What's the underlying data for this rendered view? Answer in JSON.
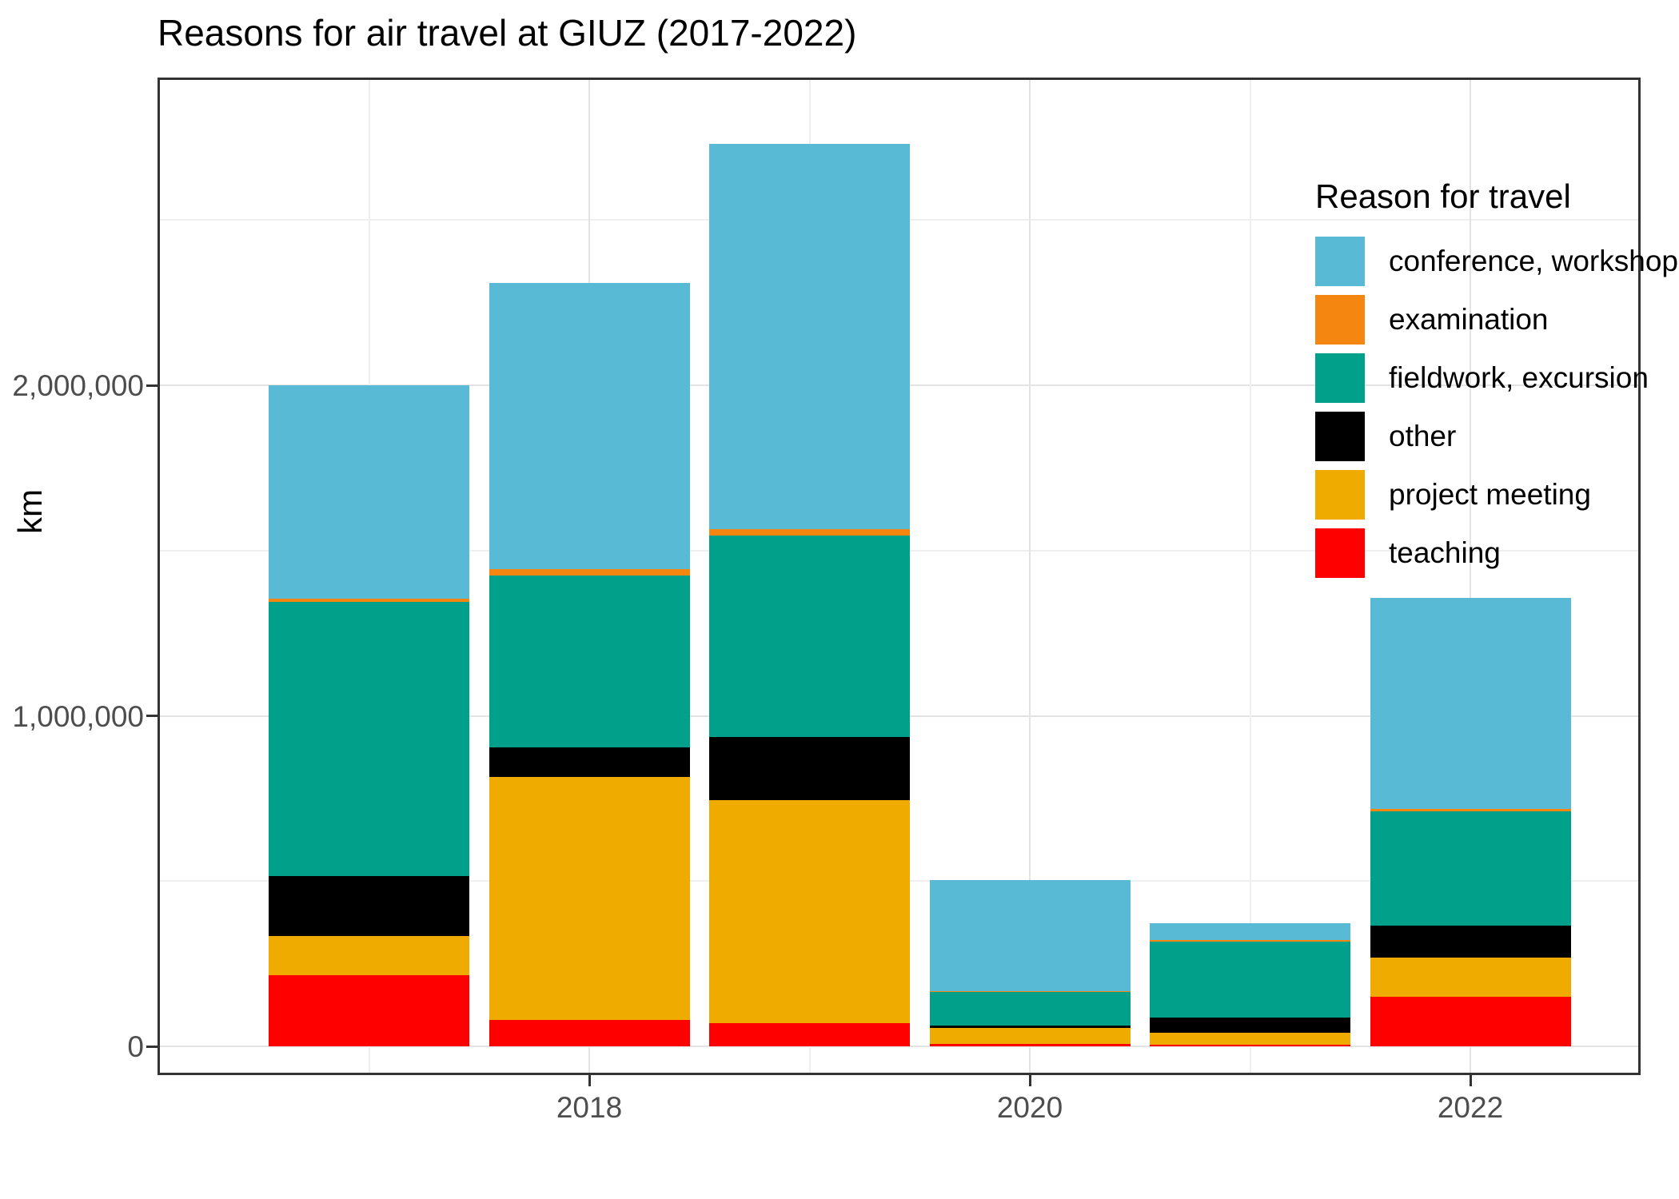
{
  "title": "Reasons for air travel at GIUZ (2017-2022)",
  "y_axis": {
    "label": "km",
    "tick_values": [
      0,
      1000000,
      2000000
    ],
    "tick_labels": [
      "0",
      "1,000,000",
      "2,000,000"
    ],
    "minor_tick_values": [
      500000,
      1500000,
      2500000
    ]
  },
  "x_axis": {
    "tick_labels": [
      "2018",
      "2020",
      "2022"
    ],
    "tick_years": [
      2018,
      2020,
      2022
    ],
    "minor_years": [
      2017,
      2019,
      2021
    ]
  },
  "legend": {
    "title": "Reason for travel",
    "items": [
      "conference, workshop",
      "examination",
      "fieldwork, excursion",
      "other",
      "project meeting",
      "teaching"
    ]
  },
  "chart_data": {
    "type": "bar",
    "stacked": true,
    "title": "Reasons for air travel at GIUZ (2017-2022)",
    "xlabel": "",
    "ylabel": "km",
    "ylim": [
      0,
      2900000
    ],
    "grid": true,
    "legend_position": "inside-top-right",
    "categories": [
      2017,
      2018,
      2019,
      2020,
      2021,
      2022
    ],
    "series": [
      {
        "name": "teaching",
        "color": "#FF0000",
        "values": [
          215000,
          80000,
          70000,
          8000,
          5000,
          150000
        ]
      },
      {
        "name": "project meeting",
        "color": "#F0AB00",
        "values": [
          120000,
          735000,
          675000,
          48000,
          35000,
          118000
        ]
      },
      {
        "name": "other",
        "color": "#000000",
        "values": [
          180000,
          90000,
          190000,
          8000,
          48000,
          97000
        ]
      },
      {
        "name": "fieldwork, excursion",
        "color": "#00A08B",
        "values": [
          830000,
          520000,
          610000,
          100000,
          230000,
          345000
        ]
      },
      {
        "name": "examination",
        "color": "#F5860F",
        "values": [
          10000,
          20000,
          20000,
          3000,
          4000,
          8000
        ]
      },
      {
        "name": "conference, workshop",
        "color": "#59BAD5",
        "values": [
          645000,
          865000,
          1165000,
          335000,
          50000,
          640000
        ]
      }
    ],
    "totals": [
      2000000,
      2310000,
      2730000,
      502000,
      372000,
      1358000
    ],
    "colors": {
      "grid_major": "#e3e3e3",
      "grid_minor": "#efefef",
      "panel_border": "#333333",
      "axis_text": "#4d4d4d",
      "title_text": "#000000"
    }
  }
}
